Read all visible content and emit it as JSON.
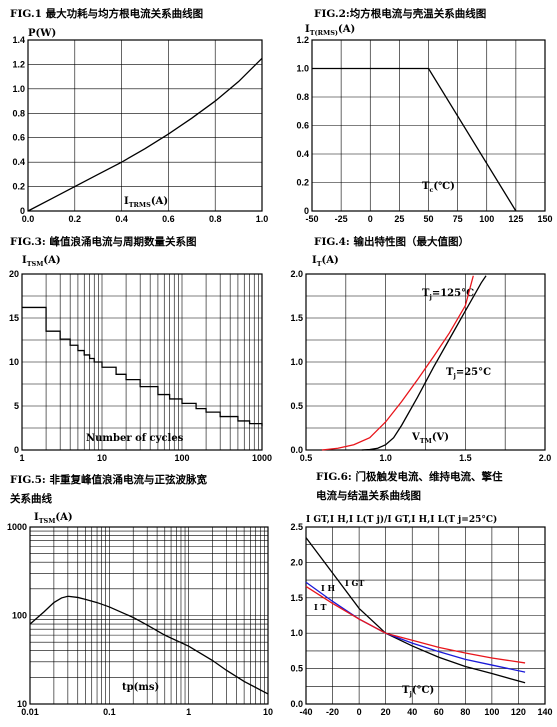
{
  "chart_data": [
    {
      "id": "fig1",
      "type": "line",
      "caption": "FIG.1  最大功耗与均方根电流关系曲线图",
      "ylabel": "P(W)",
      "xlabel_main": "I",
      "xlabel_sub": "TRMS",
      "xlabel_tail": "(A)",
      "xlim": [
        0,
        1.0
      ],
      "ylim": [
        0,
        1.4
      ],
      "xticks": [
        "0.0",
        "0.2",
        "0.4",
        "0.6",
        "0.8",
        "1.0"
      ],
      "yticks": [
        "0",
        "0.2",
        "0.4",
        "0.6",
        "0.8",
        "1.0",
        "1.2",
        "1.4"
      ],
      "xgrid": [
        0,
        0.2,
        0.4,
        0.6,
        0.8,
        1.0
      ],
      "ygrid": [
        0,
        0.2,
        0.4,
        0.6,
        0.8,
        1.0,
        1.2,
        1.4
      ],
      "series": [
        {
          "color": "#000000",
          "x": [
            0,
            0.1,
            0.2,
            0.3,
            0.4,
            0.5,
            0.6,
            0.7,
            0.8,
            0.9,
            1.0
          ],
          "y": [
            0,
            0.1,
            0.2,
            0.3,
            0.4,
            0.51,
            0.63,
            0.76,
            0.9,
            1.06,
            1.25
          ]
        }
      ]
    },
    {
      "id": "fig2",
      "type": "line",
      "caption": "FIG.2:均方根电流与壳温关系曲线图",
      "ylabel_main": "I",
      "ylabel_sub": "T(RMS)",
      "ylabel_tail": "(A)",
      "xlabel_main": "T",
      "xlabel_sub": "c",
      "xlabel_tail": "(℃)",
      "xlim": [
        -50,
        150
      ],
      "ylim": [
        0,
        1.2
      ],
      "xticks": [
        "-50",
        "-25",
        "0",
        "25",
        "50",
        "75",
        "100",
        "125",
        "150"
      ],
      "yticks": [
        "0",
        "0.2",
        "0.4",
        "0.6",
        "0.8",
        "1.0",
        "1.2"
      ],
      "xgrid": [
        -50,
        -25,
        0,
        25,
        50,
        75,
        100,
        125,
        150
      ],
      "ygrid": [
        0,
        0.2,
        0.4,
        0.6,
        0.8,
        1.0,
        1.2
      ],
      "series": [
        {
          "color": "#000000",
          "x": [
            -50,
            50,
            125
          ],
          "y": [
            1.0,
            1.0,
            0
          ]
        }
      ]
    },
    {
      "id": "fig3",
      "type": "line",
      "caption": "FIG.3:  峰值浪涌电流与周期数量关系图",
      "ylabel_main": "I",
      "ylabel_sub": "TSM",
      "ylabel_tail": "(A)",
      "xlabel": "Number of cycles",
      "xscale": "log",
      "xlim": [
        1,
        1000
      ],
      "ylim": [
        0,
        20
      ],
      "xticks": [
        "1",
        "10",
        "100",
        "1000"
      ],
      "yticks": [
        "0",
        "5",
        "10",
        "15",
        "20"
      ],
      "xgrid": [
        1,
        2,
        3,
        4,
        5,
        6,
        7,
        8,
        9,
        10,
        20,
        30,
        40,
        50,
        60,
        70,
        80,
        90,
        100,
        200,
        300,
        400,
        500,
        600,
        700,
        800,
        900,
        1000
      ],
      "ygrid": [
        0,
        2.5,
        5,
        7.5,
        10,
        12.5,
        15,
        17.5,
        20
      ],
      "series": [
        {
          "color": "#000000",
          "step": true,
          "x": [
            1,
            2,
            3,
            4,
            5,
            6,
            7,
            8,
            10,
            15,
            20,
            30,
            50,
            70,
            100,
            150,
            200,
            300,
            500,
            700,
            1000
          ],
          "y": [
            16.2,
            13.5,
            12.6,
            11.9,
            11.3,
            10.8,
            10.4,
            10.0,
            9.4,
            8.6,
            8.0,
            7.2,
            6.3,
            5.8,
            5.3,
            4.7,
            4.3,
            3.8,
            3.3,
            3.0,
            2.7
          ]
        }
      ]
    },
    {
      "id": "fig4",
      "type": "line",
      "caption": "FIG.4:  输出特性图（最大值图）",
      "ylabel_main": "I",
      "ylabel_sub": "T",
      "ylabel_tail": "(A)",
      "xlabel_main": "V",
      "xlabel_sub": "TM",
      "xlabel_tail": "(V)",
      "xlim": [
        0.5,
        2.0
      ],
      "ylim": [
        0,
        2.0
      ],
      "xticks": [
        "0.5",
        "1.0",
        "1.5",
        "2.0"
      ],
      "yticks": [
        "0.0",
        "0.5",
        "1.0",
        "1.5",
        "2.0"
      ],
      "xgrid": [
        0.5,
        0.75,
        1.0,
        1.25,
        1.5,
        1.75,
        2.0
      ],
      "ygrid": [
        0,
        0.25,
        0.5,
        0.75,
        1.0,
        1.25,
        1.5,
        1.75,
        2.0
      ],
      "annotations": [
        {
          "main": "T",
          "sub": "j",
          "tail": "=125°C"
        },
        {
          "main": "T",
          "sub": "j",
          "tail": "=25°C"
        }
      ],
      "series": [
        {
          "name": "Tj=125°C",
          "color": "#e8151b",
          "x": [
            0.6,
            0.7,
            0.8,
            0.9,
            1.0,
            1.1,
            1.2,
            1.3,
            1.4,
            1.5,
            1.55
          ],
          "y": [
            0.0,
            0.02,
            0.06,
            0.14,
            0.32,
            0.55,
            0.8,
            1.06,
            1.33,
            1.64,
            1.98
          ]
        },
        {
          "name": "Tj=25°C",
          "color": "#000000",
          "x": [
            0.85,
            0.9,
            0.95,
            1.0,
            1.05,
            1.1,
            1.2,
            1.3,
            1.4,
            1.5,
            1.6,
            1.63
          ],
          "y": [
            0.0,
            0.005,
            0.02,
            0.06,
            0.14,
            0.28,
            0.6,
            0.94,
            1.26,
            1.58,
            1.9,
            1.98
          ]
        }
      ]
    },
    {
      "id": "fig5",
      "type": "line",
      "caption_line1": "FIG.5:  非重复峰值浪涌电流与正弦波脉宽",
      "caption_line2": "关系曲线",
      "ylabel_main": "I",
      "ylabel_sub": "TSM",
      "ylabel_tail": "(A)",
      "xlabel": "tp(ms)",
      "xscale": "log",
      "yscale": "log",
      "xlim": [
        0.01,
        10
      ],
      "ylim": [
        10,
        1000
      ],
      "xticks": [
        "0.01",
        "0.1",
        "1",
        "10"
      ],
      "yticks": [
        "10",
        "100",
        "1000"
      ],
      "xgrid": [
        0.01,
        0.02,
        0.03,
        0.04,
        0.05,
        0.06,
        0.07,
        0.08,
        0.09,
        0.1,
        0.2,
        0.3,
        0.4,
        0.5,
        0.6,
        0.7,
        0.8,
        0.9,
        1,
        2,
        3,
        4,
        5,
        6,
        7,
        8,
        9,
        10
      ],
      "ygrid": [
        10,
        20,
        30,
        40,
        50,
        60,
        70,
        80,
        90,
        100,
        200,
        300,
        400,
        500,
        600,
        700,
        800,
        900,
        1000
      ],
      "series": [
        {
          "color": "#000000",
          "x": [
            0.01,
            0.015,
            0.02,
            0.025,
            0.03,
            0.04,
            0.05,
            0.07,
            0.1,
            0.2,
            0.3,
            0.5,
            1,
            2,
            3,
            5,
            10
          ],
          "y": [
            80,
            110,
            140,
            158,
            165,
            160,
            152,
            140,
            125,
            95,
            78,
            60,
            45,
            31,
            24,
            18,
            13
          ]
        }
      ]
    },
    {
      "id": "fig6",
      "type": "line",
      "caption_line1": "FIG.6:  门极触发电流、维持电流、擎住",
      "caption_line2": "电流与结温关系曲线图",
      "ylabel_text": "I GT,I H,I L(T j)/I GT,I H,I L(T j=25°C)",
      "xlabel_main": "T",
      "xlabel_sub": "j",
      "xlabel_tail": "(°C)",
      "xlim": [
        -40,
        140
      ],
      "ylim": [
        0,
        2.5
      ],
      "xticks": [
        "-40",
        "-20",
        "0",
        "20",
        "40",
        "60",
        "80",
        "100",
        "120",
        "140"
      ],
      "yticks": [
        "0.0",
        "0.5",
        "1.0",
        "1.5",
        "2.0",
        "2.5"
      ],
      "xgrid": [
        -40,
        -20,
        0,
        20,
        40,
        60,
        80,
        100,
        120,
        140
      ],
      "ygrid": [
        0,
        0.25,
        0.5,
        0.75,
        1.0,
        1.25,
        1.5,
        1.75,
        2.0,
        2.25,
        2.5
      ],
      "labels": [
        "I H",
        "I GT",
        "I T"
      ],
      "series": [
        {
          "name": "IGT",
          "color": "#000000",
          "x": [
            -40,
            -20,
            0,
            20,
            40,
            60,
            80,
            100,
            125
          ],
          "y": [
            2.35,
            1.85,
            1.35,
            1.0,
            0.82,
            0.66,
            0.53,
            0.43,
            0.3
          ]
        },
        {
          "name": "IH",
          "color": "#1a1ad8",
          "x": [
            -40,
            -20,
            0,
            20,
            40,
            60,
            80,
            100,
            125
          ],
          "y": [
            1.72,
            1.45,
            1.2,
            1.0,
            0.86,
            0.74,
            0.63,
            0.55,
            0.45
          ]
        },
        {
          "name": "IT",
          "color": "#e8151b",
          "x": [
            -40,
            -20,
            0,
            20,
            40,
            60,
            80,
            100,
            125
          ],
          "y": [
            1.66,
            1.42,
            1.2,
            1.0,
            0.9,
            0.8,
            0.72,
            0.65,
            0.58
          ]
        }
      ]
    }
  ]
}
